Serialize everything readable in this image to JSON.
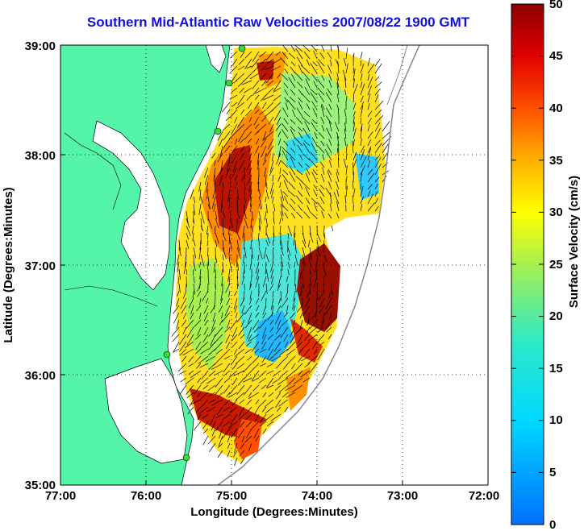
{
  "title": "Southern Mid-Atlantic Raw Velocities 2007/08/22 1900 GMT",
  "xlabel": "Longitude (Degrees:Minutes)",
  "ylabel": "Latitude (Degrees:Minutes)",
  "colorbar_label": "Surface Velocity (cm/s)",
  "x_ticks": [
    "77:00",
    "76:00",
    "75:00",
    "74:00",
    "73:00",
    "72:00"
  ],
  "y_ticks": [
    "39:00",
    "38:00",
    "37:00",
    "36:00",
    "35:00"
  ],
  "colorbar_ticks": [
    "50",
    "45",
    "40",
    "35",
    "30",
    "25",
    "20",
    "15",
    "10",
    "5",
    "0"
  ],
  "map": {
    "lon_range": [
      -77,
      -72
    ],
    "lat_range": [
      35,
      39
    ],
    "land_color": "#55f5a9",
    "ocean_color": "#ffffff",
    "grid": "dotted",
    "colorbar_range": [
      0,
      50
    ],
    "colormap": "jet",
    "station_color": "#33dd33"
  }
}
